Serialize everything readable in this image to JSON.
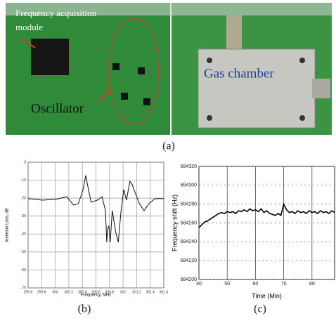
{
  "photo": {
    "module_label": [
      "Frequency acquisition",
      "module"
    ],
    "oscillator_label": "Oscillator",
    "chamber_label": "Gas chamber"
  },
  "captions": [
    "(a)",
    "(b)",
    "(c)"
  ],
  "chart_data": [
    {
      "type": "line",
      "ylabel": "Insertion Loss, dB",
      "xlabel": "Frequency, MHz",
      "color": "#111",
      "grid": true,
      "x": [
        299.6,
        299.81,
        300.01,
        300.17,
        300.27,
        300.34,
        300.41,
        300.45,
        300.49,
        300.53,
        300.62,
        300.69,
        300.74,
        300.76,
        300.77,
        300.79,
        300.81,
        300.84,
        300.89,
        300.93,
        300.97,
        301.01,
        301.05,
        301.1,
        301.13,
        301.18,
        301.24,
        301.31,
        301.38,
        301.47,
        301.6
      ],
      "values": [
        -20.3,
        -21.1,
        -20.7,
        -19.2,
        -23.9,
        -23.1,
        -15.3,
        -7.4,
        -15.3,
        -22.3,
        -21.1,
        -19.2,
        -27.0,
        -44.6,
        -36.8,
        -35.6,
        -44.6,
        -27.0,
        -38.7,
        -44.6,
        -27.0,
        -15.3,
        -21.1,
        -10.6,
        -12.1,
        -17.2,
        -23.1,
        -27.0,
        -23.1,
        -20.3,
        -20.3
      ],
      "xlim": [
        299.6,
        301.6
      ],
      "xticks": [
        299.6,
        299.8,
        300,
        300.2,
        300.4,
        300.6,
        300.8,
        301,
        301.2,
        301.4,
        301.6
      ],
      "ylim": [
        -70,
        0
      ],
      "yticks": [
        0,
        -10,
        -20,
        -30,
        -40,
        -50,
        -60,
        -70
      ]
    },
    {
      "type": "line",
      "ylabel": "Frequency shift (Hz)",
      "xlabel": "Time (Min)",
      "color": "#000",
      "grid": true,
      "x": [
        40,
        41,
        42,
        43,
        44,
        45,
        46,
        47,
        48,
        49,
        50,
        51,
        52,
        53,
        54,
        55,
        56,
        57,
        58,
        59,
        60,
        61,
        62,
        63,
        64,
        65,
        66,
        67,
        68,
        69,
        70,
        71,
        72,
        73,
        74,
        75,
        76,
        77,
        78,
        79,
        80,
        81,
        82,
        83,
        84,
        85,
        86,
        87,
        88
      ],
      "values": [
        684255,
        684258,
        684261,
        684262,
        684264,
        684266,
        684268,
        684270,
        684271,
        684270,
        684272,
        684271,
        684272,
        684270,
        684273,
        684272,
        684274,
        684272,
        684275,
        684273,
        684274,
        684272,
        684275,
        684271,
        684273,
        684270,
        684269,
        684268,
        684270,
        684268,
        684280,
        684274,
        684271,
        684272,
        684270,
        684273,
        684271,
        684272,
        684270,
        684273,
        684271,
        684272,
        684270,
        684273,
        684271,
        684272,
        684270,
        684273,
        684271
      ],
      "xlim": [
        40,
        88
      ],
      "xticks": [
        40,
        50,
        60,
        70,
        80
      ],
      "ylim": [
        684200,
        684320
      ],
      "yticks": [
        684200,
        684220,
        684240,
        684260,
        684280,
        684300,
        684320
      ]
    }
  ]
}
